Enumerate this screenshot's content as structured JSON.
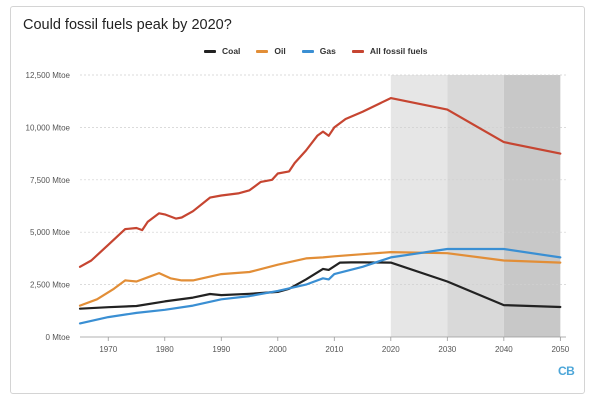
{
  "chart_data": {
    "type": "line",
    "title": "Could fossil fuels peak by 2020?",
    "xlabel": "",
    "ylabel": "",
    "xlim": [
      1965,
      2051
    ],
    "ylim": [
      0,
      12500
    ],
    "x_ticks": [
      1970,
      1980,
      1990,
      2000,
      2010,
      2020,
      2030,
      2040,
      2050
    ],
    "y_ticks": [
      {
        "value": 0,
        "label": "0 Mtoe"
      },
      {
        "value": 2500,
        "label": "2,500 Mtoe"
      },
      {
        "value": 5000,
        "label": "5,000 Mtoe"
      },
      {
        "value": 7500,
        "label": "7,500 Mtoe"
      },
      {
        "value": 10000,
        "label": "10,000 Mtoe"
      },
      {
        "value": 12500,
        "label": "12,500 Mtoe"
      }
    ],
    "shaded_ranges": [
      {
        "from": 2020,
        "to": 2030,
        "color": "#e6e6e6"
      },
      {
        "from": 2030,
        "to": 2040,
        "color": "#d9d9d9"
      },
      {
        "from": 2040,
        "to": 2050,
        "color": "#c8c8c8"
      }
    ],
    "series": [
      {
        "name": "Coal",
        "color": "#222222",
        "points": [
          [
            1965,
            1350
          ],
          [
            1970,
            1420
          ],
          [
            1975,
            1480
          ],
          [
            1980,
            1700
          ],
          [
            1985,
            1880
          ],
          [
            1988,
            2050
          ],
          [
            1990,
            2000
          ],
          [
            1995,
            2060
          ],
          [
            2000,
            2150
          ],
          [
            2002,
            2300
          ],
          [
            2005,
            2750
          ],
          [
            2008,
            3250
          ],
          [
            2009,
            3200
          ],
          [
            2011,
            3550
          ],
          [
            2013,
            3560
          ],
          [
            2015,
            3560
          ],
          [
            2020,
            3550
          ],
          [
            2030,
            2650
          ],
          [
            2040,
            1520
          ],
          [
            2050,
            1430
          ]
        ]
      },
      {
        "name": "Oil",
        "color": "#e28e37",
        "points": [
          [
            1965,
            1500
          ],
          [
            1968,
            1800
          ],
          [
            1971,
            2300
          ],
          [
            1973,
            2700
          ],
          [
            1975,
            2650
          ],
          [
            1977,
            2850
          ],
          [
            1979,
            3050
          ],
          [
            1981,
            2800
          ],
          [
            1983,
            2700
          ],
          [
            1985,
            2700
          ],
          [
            1990,
            3000
          ],
          [
            1995,
            3100
          ],
          [
            2000,
            3450
          ],
          [
            2005,
            3750
          ],
          [
            2008,
            3800
          ],
          [
            2010,
            3850
          ],
          [
            2015,
            3950
          ],
          [
            2020,
            4050
          ],
          [
            2030,
            4000
          ],
          [
            2040,
            3650
          ],
          [
            2050,
            3550
          ]
        ]
      },
      {
        "name": "Gas",
        "color": "#3a8fd3",
        "points": [
          [
            1965,
            650
          ],
          [
            1970,
            950
          ],
          [
            1975,
            1150
          ],
          [
            1980,
            1300
          ],
          [
            1985,
            1500
          ],
          [
            1990,
            1800
          ],
          [
            1995,
            1950
          ],
          [
            2000,
            2200
          ],
          [
            2005,
            2500
          ],
          [
            2008,
            2800
          ],
          [
            2009,
            2750
          ],
          [
            2010,
            3000
          ],
          [
            2015,
            3350
          ],
          [
            2020,
            3800
          ],
          [
            2030,
            4200
          ],
          [
            2040,
            4200
          ],
          [
            2050,
            3800
          ]
        ]
      },
      {
        "name": "All fossil fuels",
        "color": "#c64531",
        "points": [
          [
            1965,
            3350
          ],
          [
            1967,
            3650
          ],
          [
            1970,
            4400
          ],
          [
            1973,
            5150
          ],
          [
            1975,
            5200
          ],
          [
            1976,
            5100
          ],
          [
            1977,
            5500
          ],
          [
            1979,
            5900
          ],
          [
            1980,
            5850
          ],
          [
            1982,
            5650
          ],
          [
            1983,
            5700
          ],
          [
            1985,
            6000
          ],
          [
            1988,
            6650
          ],
          [
            1990,
            6750
          ],
          [
            1993,
            6850
          ],
          [
            1995,
            7000
          ],
          [
            1997,
            7400
          ],
          [
            1999,
            7500
          ],
          [
            2000,
            7800
          ],
          [
            2002,
            7900
          ],
          [
            2003,
            8300
          ],
          [
            2005,
            8900
          ],
          [
            2007,
            9600
          ],
          [
            2008,
            9800
          ],
          [
            2009,
            9600
          ],
          [
            2010,
            10000
          ],
          [
            2012,
            10400
          ],
          [
            2015,
            10750
          ],
          [
            2020,
            11400
          ],
          [
            2030,
            10850
          ],
          [
            2040,
            9300
          ],
          [
            2050,
            8750
          ]
        ]
      }
    ]
  },
  "brand": {
    "label": "CB"
  }
}
